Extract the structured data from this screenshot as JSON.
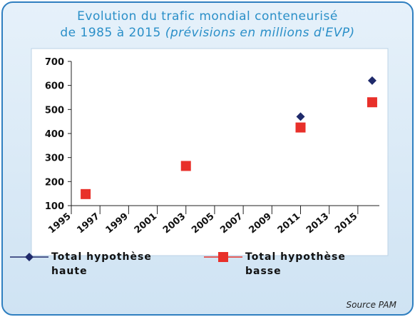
{
  "chart_data": {
    "type": "scatter",
    "title": [
      "Evolution du trafic mondial conteneurisé",
      "de 1985 à 2015"
    ],
    "subtitle": "(prévisions en millions d'EVP)",
    "x": [
      1996,
      2003,
      2011,
      2016
    ],
    "xlim": [
      1995,
      2016.5
    ],
    "xticks": [
      1995,
      1997,
      1999,
      2001,
      2003,
      2005,
      2007,
      2009,
      2011,
      2013,
      2015
    ],
    "ylim": [
      100,
      700
    ],
    "yticks": [
      100,
      200,
      300,
      400,
      500,
      600,
      700
    ],
    "series": [
      {
        "name": "Total hypothèse haute",
        "color": "#1f2a6b",
        "marker": "diamond",
        "values": [
          150,
          null,
          470,
          620
        ]
      },
      {
        "name": "Total hypothèse basse",
        "color": "#e8302a",
        "marker": "square",
        "values": [
          148,
          265,
          425,
          530
        ]
      }
    ],
    "source": "Source PAM"
  }
}
